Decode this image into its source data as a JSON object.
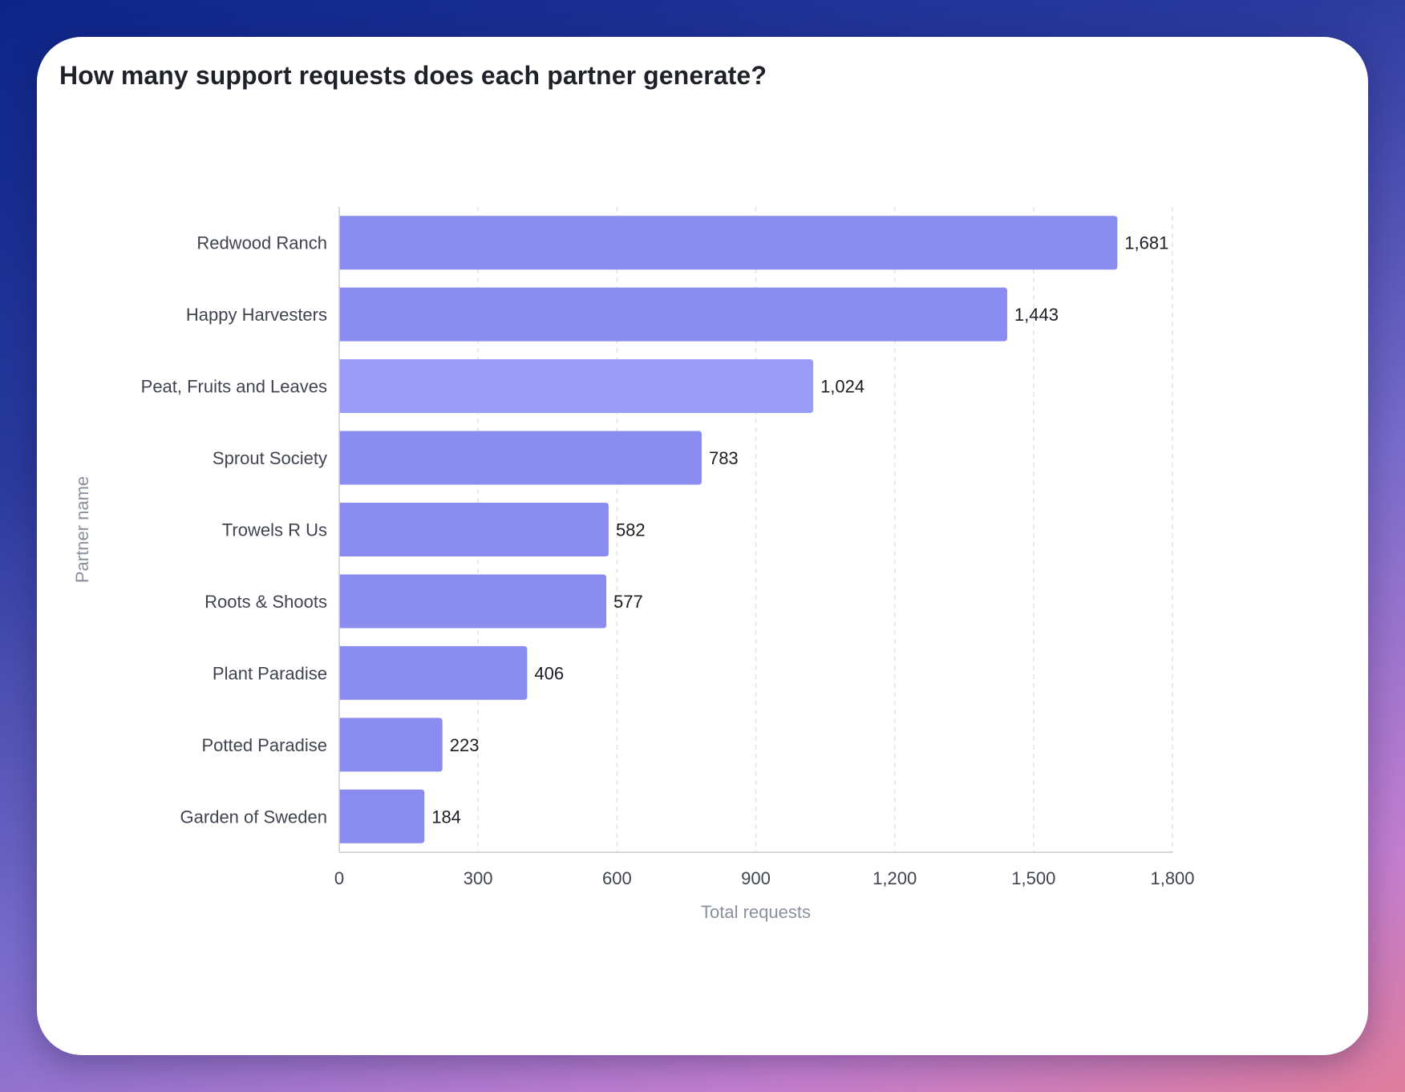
{
  "chart_data": {
    "type": "bar",
    "orientation": "horizontal",
    "title": "How many support requests does each partner generate?",
    "xlabel": "Total requests",
    "ylabel": "Partner name",
    "xlim": [
      0,
      1800
    ],
    "xticks": [
      0,
      300,
      600,
      900,
      1200,
      1500,
      1800
    ],
    "xtick_labels": [
      "0",
      "300",
      "600",
      "900",
      "1,200",
      "1,500",
      "1,800"
    ],
    "grid": "vertical dashed",
    "categories": [
      "Redwood Ranch",
      "Happy Harvesters",
      "Peat, Fruits and Leaves",
      "Sprout Society",
      "Trowels R Us",
      "Roots & Shoots",
      "Plant Paradise",
      "Potted Paradise",
      "Garden of Sweden"
    ],
    "values": [
      1681,
      1443,
      1024,
      783,
      582,
      577,
      406,
      223,
      184
    ],
    "value_labels": [
      "1,681",
      "1,443",
      "1,024",
      "783",
      "582",
      "577",
      "406",
      "223",
      "184"
    ],
    "bar_color": "#8b8cf0",
    "highlight_color": "#9b9cf7",
    "highlighted_category": "Peat, Fruits and Leaves"
  }
}
